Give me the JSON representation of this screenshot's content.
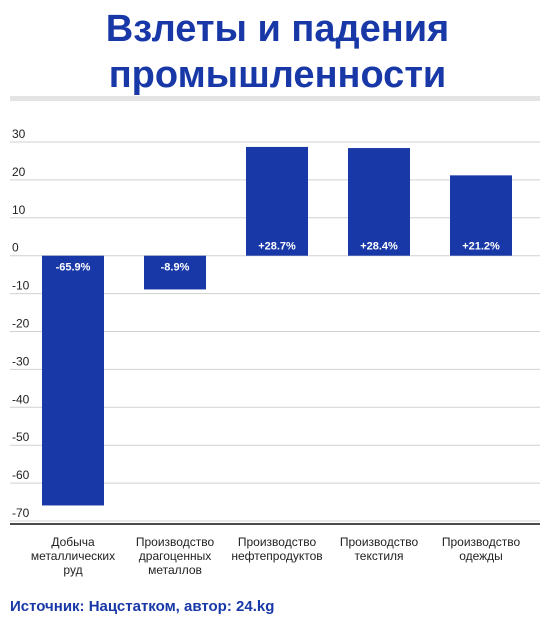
{
  "title_lines": [
    "Взлеты и падения",
    "промышленности"
  ],
  "source": "Источник: Нацстатком, автор: 24.kg",
  "colors": {
    "bar": "#1838a8",
    "title": "#1838a8",
    "grid": "#d0d0d0",
    "axis": "#111111",
    "text": "#222222"
  },
  "chart_data": {
    "type": "bar",
    "title": "Взлеты и падения промышленности",
    "categories": [
      [
        "Добыча",
        "металлических",
        "руд"
      ],
      [
        "Производство",
        "драгоценных",
        "металлов"
      ],
      [
        "Производство",
        "нефтепродуктов"
      ],
      [
        "Производство",
        "текстиля"
      ],
      [
        "Производство",
        "одежды"
      ]
    ],
    "values": [
      -65.9,
      -8.9,
      28.7,
      28.4,
      21.2
    ],
    "data_labels": [
      "-65.9%",
      "-8.9%",
      "+28.7%",
      "+28.4%",
      "+21.2%"
    ],
    "ylim": [
      -70,
      30
    ],
    "yticks": [
      30,
      20,
      10,
      0,
      -10,
      -20,
      -30,
      -40,
      -50,
      -60,
      -70
    ],
    "ytick_labels": [
      "30",
      "20",
      "10",
      "0",
      "-10",
      "-20",
      "-30",
      "-40",
      "-50",
      "-60",
      "-70"
    ],
    "grid": true,
    "legend": "none",
    "xlabel": "",
    "ylabel": ""
  }
}
